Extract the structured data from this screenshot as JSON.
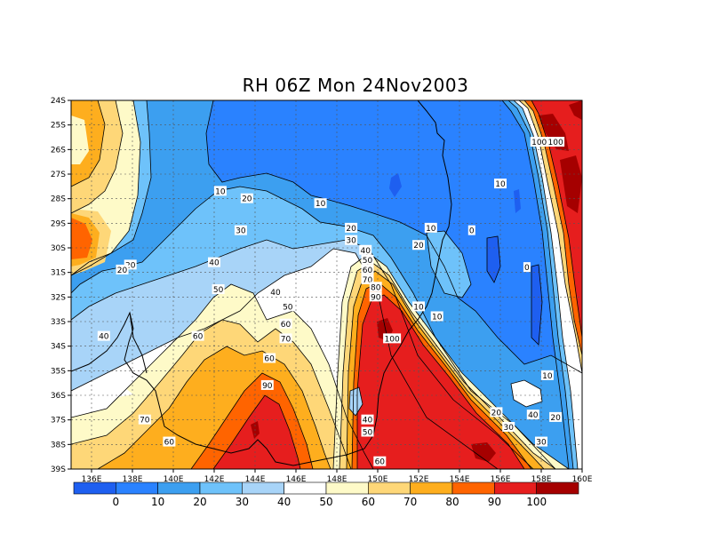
{
  "title": "RH 06Z Mon 24Nov2003",
  "colors": {
    "below0": "#1e5ff0",
    "c0_10": "#2a82ff",
    "c10_20": "#3c9ff0",
    "c20_30": "#6ec2fa",
    "c30_40": "#a8d4f8",
    "c40_50": "#ffffff",
    "c50_60": "#fefac8",
    "c60_70": "#fed778",
    "c70_80": "#feae1e",
    "c80_90": "#ff6400",
    "c90_100": "#e61e1e",
    "above100": "#a50000"
  },
  "chart_data": {
    "type": "heatmap",
    "title": "RH 06Z Mon 24Nov2003",
    "x_ticks": [
      "136E",
      "138E",
      "140E",
      "142E",
      "144E",
      "146E",
      "148E",
      "150E",
      "152E",
      "154E",
      "156E",
      "158E",
      "160E"
    ],
    "y_ticks": [
      "24S",
      "25S",
      "26S",
      "27S",
      "28S",
      "29S",
      "30S",
      "31S",
      "32S",
      "33S",
      "34S",
      "35S",
      "36S",
      "37S",
      "38S",
      "39S"
    ],
    "xlim": [
      135,
      160
    ],
    "ylim": [
      -39,
      -24
    ],
    "grid": true,
    "colorbar": {
      "labels": [
        "0",
        "10",
        "20",
        "30",
        "40",
        "50",
        "60",
        "70",
        "80",
        "90",
        "100"
      ],
      "levels": [
        0,
        10,
        20,
        30,
        40,
        50,
        60,
        70,
        80,
        90,
        100
      ]
    },
    "contour_labels": [
      {
        "text": "10",
        "lon": 142.3,
        "lat": -27.7
      },
      {
        "text": "20",
        "lon": 143.6,
        "lat": -28.0
      },
      {
        "text": "10",
        "lon": 147.2,
        "lat": -28.2
      },
      {
        "text": "30",
        "lon": 143.3,
        "lat": -29.3
      },
      {
        "text": "20",
        "lon": 148.7,
        "lat": -29.2
      },
      {
        "text": "30",
        "lon": 148.7,
        "lat": -29.7
      },
      {
        "text": "40",
        "lon": 149.4,
        "lat": -30.1
      },
      {
        "text": "50",
        "lon": 149.5,
        "lat": -30.5
      },
      {
        "text": "60",
        "lon": 149.5,
        "lat": -30.9
      },
      {
        "text": "70",
        "lon": 149.5,
        "lat": -31.3
      },
      {
        "text": "80",
        "lon": 149.9,
        "lat": -31.6
      },
      {
        "text": "90",
        "lon": 149.9,
        "lat": -32.0
      },
      {
        "text": "10",
        "lon": 152.6,
        "lat": -29.2
      },
      {
        "text": "20",
        "lon": 152.0,
        "lat": -29.9
      },
      {
        "text": "10",
        "lon": 156.0,
        "lat": -27.4
      },
      {
        "text": "0",
        "lon": 154.6,
        "lat": -29.3
      },
      {
        "text": "0",
        "lon": 157.3,
        "lat": -30.8
      },
      {
        "text": "100",
        "lon": 157.9,
        "lat": -25.7
      },
      {
        "text": "100",
        "lon": 158.7,
        "lat": -25.7
      },
      {
        "text": "40",
        "lon": 142.0,
        "lat": -30.6
      },
      {
        "text": "20",
        "lon": 137.9,
        "lat": -30.7
      },
      {
        "text": "20",
        "lon": 137.5,
        "lat": -30.9
      },
      {
        "text": "50",
        "lon": 142.2,
        "lat": -31.7
      },
      {
        "text": "40",
        "lon": 145.0,
        "lat": -31.8
      },
      {
        "text": "50",
        "lon": 145.6,
        "lat": -32.4
      },
      {
        "text": "60",
        "lon": 145.5,
        "lat": -33.1
      },
      {
        "text": "70",
        "lon": 145.5,
        "lat": -33.7
      },
      {
        "text": "60",
        "lon": 144.7,
        "lat": -34.5
      },
      {
        "text": "60",
        "lon": 141.2,
        "lat": -33.6
      },
      {
        "text": "40",
        "lon": 136.6,
        "lat": -33.6
      },
      {
        "text": "90",
        "lon": 144.6,
        "lat": -35.6
      },
      {
        "text": "100",
        "lon": 150.7,
        "lat": -33.7
      },
      {
        "text": "10",
        "lon": 152.0,
        "lat": -32.4
      },
      {
        "text": "10",
        "lon": 152.9,
        "lat": -32.8
      },
      {
        "text": "10",
        "lon": 158.3,
        "lat": -35.2
      },
      {
        "text": "20",
        "lon": 155.8,
        "lat": -36.7
      },
      {
        "text": "40",
        "lon": 157.6,
        "lat": -36.8
      },
      {
        "text": "20",
        "lon": 158.7,
        "lat": -36.9
      },
      {
        "text": "30",
        "lon": 156.4,
        "lat": -37.3
      },
      {
        "text": "30",
        "lon": 158.0,
        "lat": -37.9
      },
      {
        "text": "40",
        "lon": 149.5,
        "lat": -37.0
      },
      {
        "text": "50",
        "lon": 149.5,
        "lat": -37.5
      },
      {
        "text": "60",
        "lon": 150.1,
        "lat": -38.7
      },
      {
        "text": "70",
        "lon": 138.6,
        "lat": -37.0
      },
      {
        "text": "60",
        "lon": 139.8,
        "lat": -37.9
      }
    ]
  }
}
